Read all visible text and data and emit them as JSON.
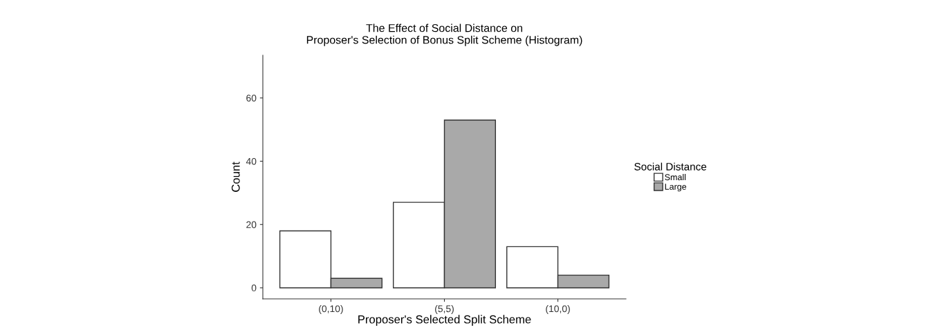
{
  "chart_data": {
    "type": "bar",
    "title": "The Effect of Social Distance on\nProposer's Selection of Bonus Split Scheme (Histogram)",
    "xlabel": "Proposer's Selected Split Scheme",
    "ylabel": "Count",
    "legend_title": "Social Distance",
    "legend": "right",
    "categories": [
      "(0,10)",
      "(5,5)",
      "(10,0)"
    ],
    "series": [
      {
        "name": "Small",
        "color": "#ffffff",
        "values": [
          18,
          27,
          13
        ]
      },
      {
        "name": "Large",
        "color": "#a9a9a9",
        "values": [
          3,
          53,
          4
        ]
      }
    ],
    "ylim": [
      -3.5,
      73.5
    ],
    "yticks": [
      0,
      20,
      40,
      60
    ],
    "grid": false
  }
}
